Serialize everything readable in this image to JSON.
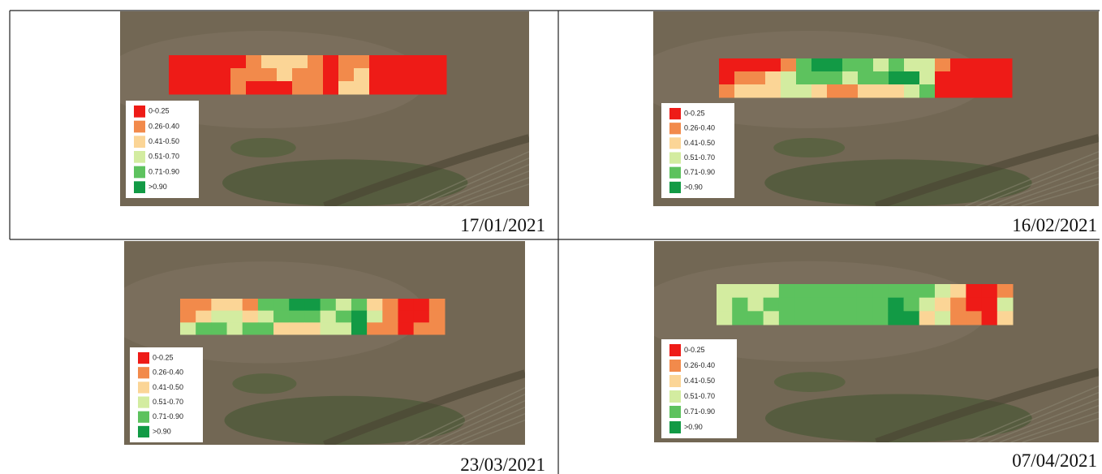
{
  "legend": [
    {
      "label": "0-0.25",
      "color": "#ee1b17"
    },
    {
      "label": "0.26-0.40",
      "color": "#f28a4b"
    },
    {
      "label": "0.41-0.50",
      "color": "#fbd596"
    },
    {
      "label": "0.51-0.70",
      "color": "#d3eca0"
    },
    {
      "label": "0.71-0.90",
      "color": "#5dc25e"
    },
    {
      "label": ">0.90",
      "color": "#129a45"
    }
  ],
  "panels": [
    {
      "date": "17/01/2021",
      "grid": [
        [
          0,
          0,
          0,
          0,
          0,
          1,
          2,
          2,
          2,
          1,
          0,
          1,
          1,
          0,
          0,
          0,
          0,
          0
        ],
        [
          0,
          0,
          0,
          0,
          1,
          1,
          1,
          2,
          1,
          1,
          0,
          1,
          2,
          0,
          0,
          0,
          0,
          0
        ],
        [
          0,
          0,
          0,
          0,
          1,
          0,
          0,
          0,
          1,
          1,
          0,
          2,
          2,
          0,
          0,
          0,
          0,
          0
        ]
      ]
    },
    {
      "date": "16/02/2021",
      "grid": [
        [
          0,
          0,
          0,
          0,
          1,
          4,
          5,
          5,
          4,
          4,
          3,
          4,
          3,
          3,
          1,
          0,
          0,
          0,
          0
        ],
        [
          0,
          1,
          1,
          2,
          3,
          4,
          4,
          4,
          3,
          4,
          4,
          5,
          5,
          3,
          0,
          0,
          0,
          0,
          0
        ],
        [
          1,
          2,
          2,
          2,
          3,
          3,
          2,
          1,
          1,
          2,
          2,
          2,
          3,
          4,
          0,
          0,
          0,
          0,
          0
        ]
      ]
    },
    {
      "date": "23/03/2021",
      "grid": [
        [
          1,
          1,
          2,
          2,
          1,
          4,
          4,
          5,
          5,
          4,
          3,
          4,
          2,
          1,
          0,
          0,
          1
        ],
        [
          1,
          2,
          3,
          3,
          2,
          3,
          4,
          4,
          4,
          3,
          4,
          5,
          3,
          1,
          0,
          0,
          1
        ],
        [
          3,
          4,
          4,
          3,
          4,
          4,
          2,
          2,
          2,
          3,
          3,
          5,
          1,
          1,
          0,
          1,
          1
        ]
      ]
    },
    {
      "date": "07/04/2021",
      "grid": [
        [
          3,
          3,
          3,
          3,
          4,
          4,
          4,
          4,
          4,
          4,
          4,
          4,
          4,
          4,
          3,
          2,
          0,
          0,
          1
        ],
        [
          3,
          4,
          3,
          4,
          4,
          4,
          4,
          4,
          4,
          4,
          4,
          5,
          4,
          3,
          2,
          1,
          0,
          0,
          3
        ],
        [
          3,
          4,
          4,
          3,
          4,
          4,
          4,
          4,
          4,
          4,
          4,
          5,
          5,
          2,
          3,
          1,
          1,
          0,
          2
        ]
      ]
    }
  ]
}
